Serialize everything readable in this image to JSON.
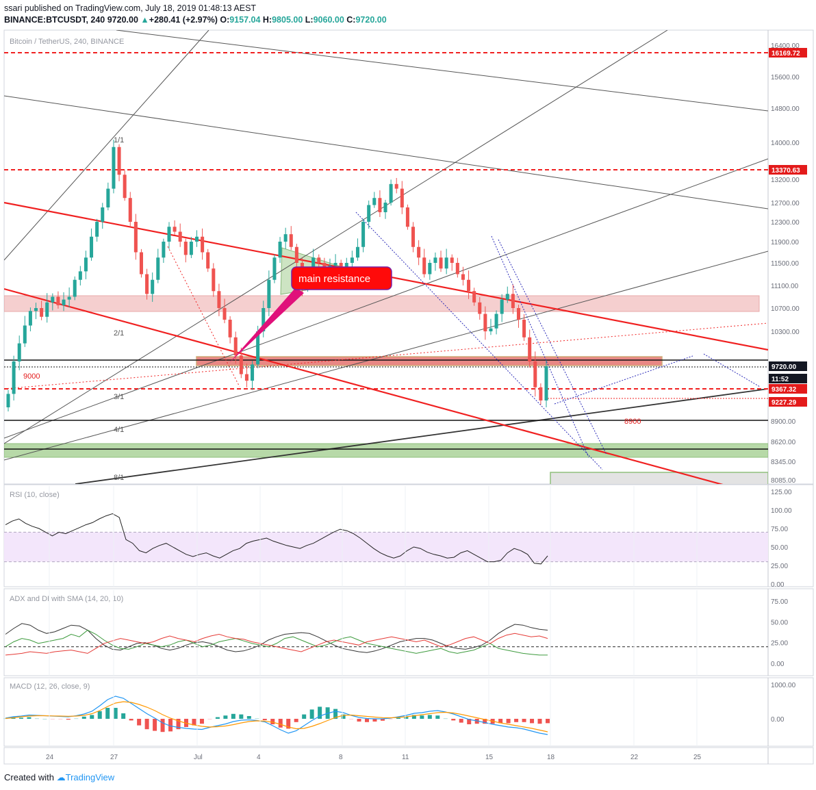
{
  "header": {
    "publisher": "ssari published on TradingView.com, July 18, 2019 01:48:13 AEST",
    "symbol": "BINANCE:BTCUSDT, 240",
    "price": "9720.00",
    "change": "+280.41 (+2.97%)",
    "ohlc_o_label": "O:",
    "ohlc_o": "9157.04",
    "ohlc_h_label": "H:",
    "ohlc_h": "9805.00",
    "ohlc_l_label": "L:",
    "ohlc_l": "9060.00",
    "ohlc_c_label": "C:",
    "ohlc_c": "9720.00"
  },
  "footer": {
    "created_with": "Created with",
    "brand": "TradingView"
  },
  "colors": {
    "up": "#26a69a",
    "down": "#ef5350",
    "red_line": "#f02020",
    "support_zone": "#f4c7c7",
    "green_zone": "#b7d9a8",
    "rsi_band": "#f3e6fb",
    "annotation": "#ff0a0a",
    "macd_line": "#2196f3",
    "signal_line": "#ff9800"
  },
  "annotation": {
    "text": "main resistance"
  },
  "chart_data": [
    {
      "type": "candlestick",
      "title": "Bitcoin / TetherUS, 240, BINANCE",
      "y_ticks": [
        8085,
        8345,
        8620,
        8900,
        9200,
        9720,
        10300,
        10700,
        11100,
        11500,
        11900,
        12300,
        12700,
        13200,
        14000,
        14800,
        15600,
        16400
      ],
      "y_tick_labels": [
        "8085.00",
        "8345.00",
        "8620.00",
        "8900.00",
        "9200.00",
        "9720.00",
        "10300.00",
        "10700.00",
        "11100.00",
        "11500.00",
        "11900.00",
        "12300.00",
        "12700.00",
        "13200.00",
        "14000.00",
        "14800.00",
        "15600.00",
        "16400.00"
      ],
      "x_tick_labels": [
        "24",
        "27",
        "Jul",
        "4",
        "8",
        "11",
        "15",
        "18",
        "22",
        "25"
      ],
      "price_labels": [
        {
          "value": 16169.72,
          "text": "16169.72",
          "color": "#e31b1b"
        },
        {
          "value": 13370.63,
          "text": "13370.63",
          "color": "#e31b1b"
        },
        {
          "value": 9720.0,
          "text": "9720.00",
          "color": "#131722"
        },
        {
          "value": 9540,
          "text": "11:52",
          "color": "#131722"
        },
        {
          "value": 9367.32,
          "text": "9367.32",
          "color": "#e31b1b"
        },
        {
          "value": 9227.29,
          "text": "9227.29",
          "color": "#e31b1b"
        }
      ],
      "level_labels": [
        {
          "value": 9000,
          "text": "9000"
        },
        {
          "value": 8900,
          "text": "8900"
        }
      ],
      "fib_labels": [
        "1/1",
        "2/1",
        "3/1",
        "4/1",
        "8/1"
      ],
      "closes": [
        9300,
        9800,
        10100,
        10400,
        10650,
        10700,
        10550,
        10800,
        10900,
        10750,
        10850,
        10900,
        11200,
        11350,
        11600,
        12000,
        12300,
        12600,
        13000,
        13900,
        13300,
        12800,
        12300,
        11700,
        11300,
        10950,
        11200,
        11600,
        11900,
        12200,
        12100,
        11900,
        11650,
        11900,
        12000,
        11700,
        11400,
        11000,
        10700,
        10500,
        10200,
        9900,
        9600,
        9500,
        9750,
        10300,
        10700,
        11200,
        11600,
        11900,
        12050,
        11800,
        11500,
        11050,
        11300,
        11600,
        11500,
        11350,
        11450,
        11500,
        11350,
        11500,
        11600,
        11800,
        12300,
        12650,
        12800,
        12500,
        12700,
        13100,
        13000,
        12600,
        12200,
        11800,
        11600,
        11300,
        11500,
        11600,
        11400,
        11600,
        11500,
        11300,
        11200,
        11000,
        10800,
        10600,
        10300,
        10350,
        10600,
        10850,
        10950,
        10700,
        10500,
        10200,
        9800,
        9400,
        9200,
        9720
      ],
      "rsi": {
        "title": "RSI (10, close)",
        "y_tick_labels": [
          "125.00",
          "100.00",
          "75.00",
          "50.00",
          "25.00",
          "0.00"
        ],
        "bands": [
          70,
          30
        ],
        "values": [
          80,
          85,
          88,
          82,
          78,
          75,
          70,
          65,
          70,
          68,
          72,
          76,
          80,
          83,
          88,
          92,
          95,
          90,
          60,
          55,
          45,
          42,
          48,
          52,
          55,
          50,
          45,
          40,
          37,
          40,
          42,
          38,
          35,
          40,
          45,
          48,
          55,
          58,
          60,
          62,
          58,
          55,
          52,
          50,
          48,
          52,
          55,
          60,
          65,
          70,
          74,
          72,
          68,
          62,
          55,
          48,
          42,
          38,
          35,
          38,
          45,
          50,
          48,
          43,
          40,
          38,
          35,
          36,
          42,
          45,
          40,
          35,
          30,
          30,
          32,
          42,
          48,
          45,
          40,
          28,
          27,
          38
        ]
      },
      "adx": {
        "title": "ADX and DI with SMA (14, 20, 10)",
        "y_tick_labels": [
          "75.00",
          "50.00",
          "25.00",
          "0.00"
        ],
        "adx": [
          35,
          42,
          48,
          46,
          40,
          36,
          38,
          42,
          46,
          45,
          40,
          30,
          22,
          17,
          16,
          20,
          24,
          25,
          22,
          18,
          16,
          18,
          22,
          25,
          26,
          24,
          20,
          16,
          14,
          15,
          18,
          22,
          28,
          32,
          35,
          36,
          37,
          36,
          32,
          27,
          22,
          18,
          16,
          14,
          13,
          15,
          18,
          22,
          26,
          28,
          30,
          30,
          28,
          24,
          20,
          18,
          17,
          19,
          22,
          28,
          36,
          42,
          47,
          46,
          43,
          41,
          40
        ],
        "plus_di": [
          20,
          26,
          30,
          28,
          24,
          26,
          28,
          30,
          35,
          32,
          40,
          35,
          28,
          22,
          18,
          17,
          20,
          24,
          22,
          20,
          22,
          26,
          28,
          24,
          20,
          22,
          26,
          28,
          30,
          27,
          24,
          22,
          20,
          24,
          30,
          32,
          28,
          24,
          20,
          22,
          26,
          30,
          32,
          28,
          24,
          22,
          20,
          18,
          16,
          14,
          12,
          14,
          16,
          18,
          14,
          12,
          14,
          16,
          20,
          24,
          18,
          16,
          14,
          12,
          11,
          10,
          10
        ],
        "minus_di": [
          10,
          11,
          12,
          14,
          13,
          12,
          14,
          15,
          16,
          14,
          12,
          18,
          24,
          27,
          30,
          28,
          26,
          24,
          26,
          30,
          33,
          30,
          28,
          26,
          30,
          33,
          35,
          32,
          30,
          29,
          26,
          24,
          22,
          20,
          18,
          16,
          14,
          18,
          22,
          26,
          28,
          26,
          24,
          22,
          26,
          28,
          30,
          32,
          30,
          28,
          26,
          28,
          24,
          20,
          22,
          26,
          30,
          32,
          28,
          24,
          30,
          34,
          36,
          34,
          32,
          33,
          30
        ]
      },
      "macd": {
        "title": "MACD (12, 26, close, 9)",
        "y_tick_labels": [
          "1000.00",
          "0.00"
        ],
        "macd": [
          20,
          60,
          80,
          110,
          100,
          90,
          80,
          70,
          60,
          90,
          140,
          220,
          380,
          560,
          660,
          600,
          450,
          300,
          150,
          20,
          -120,
          -210,
          -250,
          -280,
          -300,
          -310,
          -250,
          -200,
          -150,
          -80,
          -40,
          -30,
          -50,
          -90,
          -200,
          -320,
          -420,
          -350,
          -200,
          -50,
          80,
          160,
          220,
          180,
          100,
          40,
          10,
          0,
          0,
          20,
          60,
          100,
          160,
          180,
          220,
          240,
          200,
          140,
          60,
          -20,
          -60,
          -110,
          -160,
          -200,
          -240,
          -260,
          -300,
          -360,
          -420,
          -460
        ],
        "signal": [
          10,
          30,
          60,
          80,
          90,
          90,
          85,
          80,
          75,
          80,
          100,
          150,
          240,
          360,
          460,
          500,
          480,
          420,
          340,
          240,
          120,
          20,
          -60,
          -130,
          -180,
          -220,
          -240,
          -230,
          -210,
          -170,
          -120,
          -80,
          -60,
          -65,
          -100,
          -160,
          -240,
          -290,
          -280,
          -220,
          -140,
          -50,
          40,
          100,
          110,
          90,
          70,
          50,
          35,
          30,
          40,
          60,
          90,
          120,
          150,
          180,
          190,
          170,
          130,
          80,
          30,
          -20,
          -70,
          -120,
          -160,
          -200,
          -240,
          -280,
          -330,
          -380
        ]
      }
    }
  ]
}
